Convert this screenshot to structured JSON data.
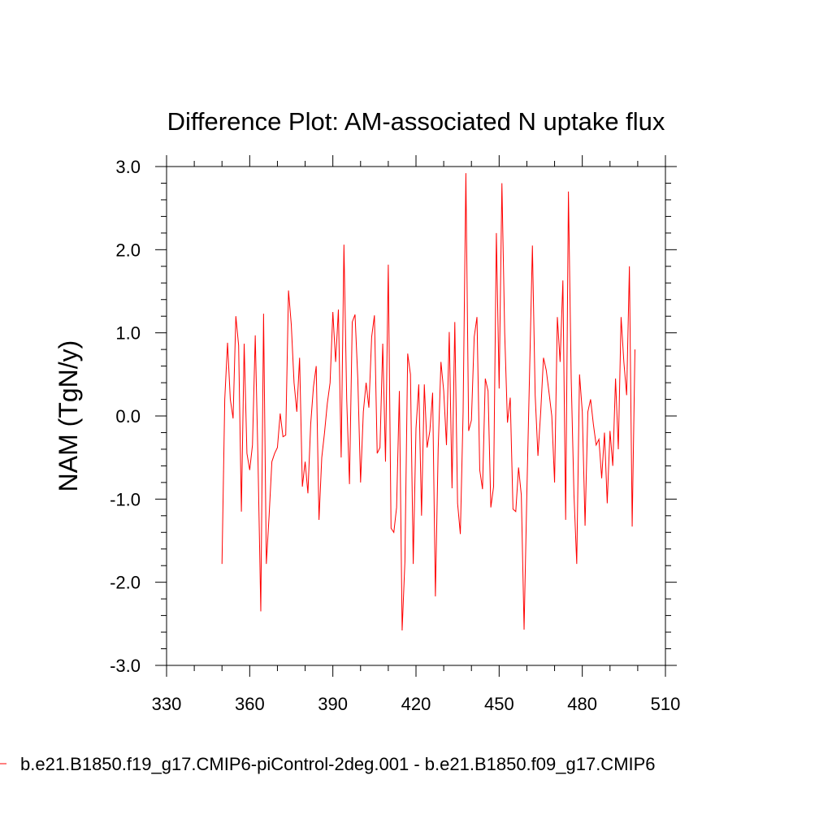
{
  "chart_data": {
    "type": "line",
    "title": "Difference Plot: AM-associated N uptake flux",
    "xlabel": "",
    "ylabel": "NAM  (TgN/y)",
    "xlim": [
      330,
      510
    ],
    "ylim": [
      -3.0,
      3.0
    ],
    "xticks": [
      330,
      360,
      390,
      420,
      450,
      480,
      510
    ],
    "yticks": [
      "-3.0",
      "-2.0",
      "-1.0",
      "0.0",
      "1.0",
      "2.0",
      "3.0"
    ],
    "grid": false,
    "legend": "bottom",
    "series": [
      {
        "name": "b.e21.B1850.f19_g17.CMIP6-piControl-2deg.001 - b.e21.B1850.f09_g17.CMIP6",
        "color": "#ff0000",
        "x": [
          350,
          351,
          352,
          353,
          354,
          355,
          356,
          357,
          358,
          359,
          360,
          361,
          362,
          363,
          364,
          365,
          366,
          367,
          368,
          369,
          370,
          371,
          372,
          373,
          374,
          375,
          376,
          377,
          378,
          379,
          380,
          381,
          382,
          383,
          384,
          385,
          386,
          387,
          388,
          389,
          390,
          391,
          392,
          393,
          394,
          395,
          396,
          397,
          398,
          399,
          400,
          401,
          402,
          403,
          404,
          405,
          406,
          407,
          408,
          409,
          410,
          411,
          412,
          413,
          414,
          415,
          416,
          417,
          418,
          419,
          420,
          421,
          422,
          423,
          424,
          425,
          426,
          427,
          428,
          429,
          430,
          431,
          432,
          433,
          434,
          435,
          436,
          437,
          438,
          439,
          440,
          441,
          442,
          443,
          444,
          445,
          446,
          447,
          448,
          449,
          450,
          451,
          452,
          453,
          454,
          455,
          456,
          457,
          458,
          459,
          460,
          461,
          462,
          463,
          464,
          465,
          466,
          467,
          468,
          469,
          470,
          471,
          472,
          473,
          474,
          475,
          476,
          477,
          478,
          479,
          480,
          481,
          482,
          483,
          484,
          485,
          486,
          487,
          488,
          489,
          490,
          491,
          492,
          493,
          494,
          495,
          496,
          497,
          498,
          499
        ],
        "values": [
          -1.78,
          0.2,
          0.88,
          0.2,
          -0.03,
          1.2,
          0.85,
          -1.15,
          0.87,
          -0.45,
          -0.65,
          -0.35,
          0.97,
          -0.55,
          -2.35,
          1.23,
          -1.78,
          -1.2,
          -0.55,
          -0.45,
          -0.38,
          0.03,
          -0.25,
          -0.23,
          1.51,
          1.1,
          0.4,
          0.05,
          0.7,
          -0.85,
          -0.55,
          -0.93,
          -0.1,
          0.35,
          0.6,
          -1.25,
          -0.5,
          -0.2,
          0.15,
          0.4,
          1.25,
          0.65,
          1.28,
          -0.5,
          2.06,
          0.2,
          -0.82,
          1.13,
          1.22,
          0.45,
          -0.8,
          0.05,
          0.4,
          0.1,
          0.95,
          1.21,
          -0.45,
          -0.38,
          0.87,
          -0.55,
          1.82,
          -1.35,
          -1.4,
          -1.1,
          0.3,
          -2.58,
          -1.75,
          0.75,
          0.5,
          -1.78,
          -0.15,
          0.38,
          -1.2,
          0.38,
          -0.38,
          -0.18,
          0.28,
          -2.17,
          -0.4,
          0.65,
          0.3,
          -0.35,
          1.01,
          -0.87,
          1.13,
          -1.05,
          -1.42,
          0.05,
          2.92,
          -0.18,
          -0.05,
          0.95,
          1.19,
          -0.65,
          -0.88,
          0.45,
          0.3,
          -1.1,
          -0.85,
          2.2,
          0.33,
          2.8,
          1.0,
          -0.08,
          0.22,
          -1.12,
          -1.15,
          -0.62,
          -0.95,
          -2.57,
          -0.93,
          0.55,
          2.05,
          0.25,
          -0.48,
          0.05,
          0.7,
          0.55,
          0.28,
          0.0,
          -0.8,
          1.19,
          0.65,
          1.63,
          -1.25,
          2.7,
          0.45,
          -0.95,
          -1.78,
          0.5,
          0.05,
          -1.32,
          0.05,
          0.2,
          -0.1,
          -0.35,
          -0.28,
          -0.75,
          -0.2,
          -1.05,
          -0.18,
          -0.6,
          0.45,
          -0.4,
          1.19,
          0.65,
          0.25,
          1.8,
          -1.33,
          0.8
        ]
      }
    ]
  }
}
